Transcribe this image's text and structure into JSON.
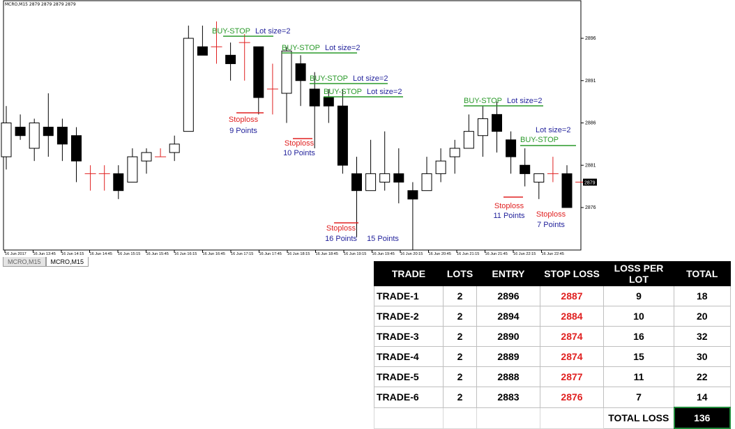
{
  "window": {
    "title": "MCRO,M15  2879 2879 2879 2879"
  },
  "tabs": [
    {
      "label": "MCRO,M15"
    },
    {
      "label": "MCRO,M15"
    }
  ],
  "chart_data": {
    "type": "candlestick",
    "y_ticks": [
      "2896",
      "2891",
      "2886",
      "2881",
      "2876"
    ],
    "current_price": "2879",
    "x_ticks": [
      "16 Jun 2017",
      "16 Jun 13:45",
      "16 Jun 14:15",
      "16 Jun 14:45",
      "16 Jun 15:15",
      "16 Jun 15:45",
      "16 Jun 16:15",
      "16 Jun 16:45",
      "16 Jun 17:15",
      "16 Jun 17:45",
      "16 Jun 18:15",
      "16 Jun 18:45",
      "16 Jun 19:15",
      "16 Jun 19:45",
      "16 Jun 20:15",
      "16 Jun 20:45",
      "16 Jun 21:15",
      "16 Jun 21:45",
      "16 Jun 22:15",
      "16 Jun 22:45"
    ],
    "candles": [
      {
        "o": 2882,
        "h": 2888,
        "l": 2880.5,
        "c": 2886
      },
      {
        "o": 2885.5,
        "h": 2887,
        "l": 2884,
        "c": 2884.5
      },
      {
        "o": 2883,
        "h": 2886.5,
        "l": 2881.5,
        "c": 2886
      },
      {
        "o": 2885.5,
        "h": 2889.5,
        "l": 2882,
        "c": 2884.5
      },
      {
        "o": 2885.5,
        "h": 2886.5,
        "l": 2881.5,
        "c": 2883.5
      },
      {
        "o": 2884.5,
        "h": 2885.5,
        "l": 2879,
        "c": 2881.5
      },
      {
        "o": 2880,
        "h": 2881,
        "l": 2878,
        "c": 2880
      },
      {
        "o": 2880,
        "h": 2881,
        "l": 2878,
        "c": 2880
      },
      {
        "o": 2880,
        "h": 2881,
        "l": 2877,
        "c": 2878
      },
      {
        "o": 2879,
        "h": 2883,
        "l": 2879,
        "c": 2882
      },
      {
        "o": 2881.5,
        "h": 2883,
        "l": 2880,
        "c": 2882.5
      },
      {
        "o": 2882,
        "h": 2883,
        "l": 2882,
        "c": 2882
      },
      {
        "o": 2882.5,
        "h": 2884.5,
        "l": 2881.5,
        "c": 2883.5
      },
      {
        "o": 2885,
        "h": 2897.5,
        "l": 2885,
        "c": 2896
      },
      {
        "o": 2895,
        "h": 2897.5,
        "l": 2894,
        "c": 2894
      },
      {
        "o": 2895,
        "h": 2898,
        "l": 2893,
        "c": 2895
      },
      {
        "o": 2894,
        "h": 2895.5,
        "l": 2891,
        "c": 2893
      },
      {
        "o": 2895.5,
        "h": 2896.5,
        "l": 2891,
        "c": 2895.5
      },
      {
        "o": 2895,
        "h": 2895,
        "l": 2887,
        "c": 2889
      },
      {
        "o": 2890,
        "h": 2893,
        "l": 2887,
        "c": 2890
      },
      {
        "o": 2889.5,
        "h": 2895,
        "l": 2886,
        "c": 2894.5
      },
      {
        "o": 2893,
        "h": 2894,
        "l": 2888,
        "c": 2891
      },
      {
        "o": 2890,
        "h": 2892,
        "l": 2883,
        "c": 2888
      },
      {
        "o": 2889,
        "h": 2890,
        "l": 2886,
        "c": 2888
      },
      {
        "o": 2888,
        "h": 2890,
        "l": 2880,
        "c": 2881
      },
      {
        "o": 2880,
        "h": 2882,
        "l": 2872.5,
        "c": 2878
      },
      {
        "o": 2878,
        "h": 2884,
        "l": 2878,
        "c": 2880
      },
      {
        "o": 2879,
        "h": 2885,
        "l": 2878,
        "c": 2880
      },
      {
        "o": 2880,
        "h": 2883,
        "l": 2876.5,
        "c": 2879
      },
      {
        "o": 2878,
        "h": 2879,
        "l": 2871,
        "c": 2877
      },
      {
        "o": 2878,
        "h": 2882,
        "l": 2878,
        "c": 2880
      },
      {
        "o": 2880,
        "h": 2883,
        "l": 2879,
        "c": 2881.5
      },
      {
        "o": 2882,
        "h": 2884,
        "l": 2880,
        "c": 2883
      },
      {
        "o": 2883,
        "h": 2887,
        "l": 2883,
        "c": 2885
      },
      {
        "o": 2884.5,
        "h": 2888,
        "l": 2882,
        "c": 2886.5
      },
      {
        "o": 2887,
        "h": 2888.5,
        "l": 2882.5,
        "c": 2885
      },
      {
        "o": 2884,
        "h": 2885,
        "l": 2880,
        "c": 2882
      },
      {
        "o": 2881,
        "h": 2883,
        "l": 2878.5,
        "c": 2880
      },
      {
        "o": 2879,
        "h": 2880,
        "l": 2877,
        "c": 2880
      },
      {
        "o": 2880,
        "h": 2882,
        "l": 2879,
        "c": 2880
      },
      {
        "o": 2880,
        "h": 2881,
        "l": 2876,
        "c": 2876
      },
      {
        "o": 2879,
        "h": 2879,
        "l": 2879,
        "c": 2879
      }
    ],
    "annotations": {
      "buy_stop": [
        {
          "label": "BUY-STOP",
          "lot": "Lot size=2"
        },
        {
          "label": "BUY-STOP",
          "lot": "Lot size=2"
        },
        {
          "label": "BUY-STOP",
          "lot": "Lot size=2"
        },
        {
          "label": "BUY-STOP",
          "lot": "Lot size=2"
        },
        {
          "label": "BUY-STOP",
          "lot": "Lot size=2"
        },
        {
          "label": "BUY-STOP",
          "lot": "Lot size=2"
        }
      ],
      "stoploss": [
        {
          "label": "Stoploss",
          "points": "9 Points"
        },
        {
          "label": "Stoploss",
          "points": "10 Points"
        },
        {
          "label": "Stoploss",
          "points": "16 Points"
        },
        {
          "label": "",
          "points": "15 Points"
        },
        {
          "label": "Stoploss",
          "points": "11 Points"
        },
        {
          "label": "Stoploss",
          "points": "7 Points"
        }
      ]
    },
    "colors": {
      "buy_stop": "#2a9a2a",
      "lot": "#1f1f9a",
      "stoploss": "#e02020",
      "points": "#1f1f9a",
      "neutral": "#e02020"
    }
  },
  "table": {
    "headers": [
      "TRADE",
      "LOTS",
      "ENTRY",
      "STOP LOSS",
      "LOSS PER LOT",
      "TOTAL"
    ],
    "rows": [
      [
        "TRADE-1",
        "2",
        "2896",
        "2887",
        "9",
        "18"
      ],
      [
        "TRADE-2",
        "2",
        "2894",
        "2884",
        "10",
        "20"
      ],
      [
        "TRADE-3",
        "2",
        "2890",
        "2874",
        "16",
        "32"
      ],
      [
        "TRADE-4",
        "2",
        "2889",
        "2874",
        "15",
        "30"
      ],
      [
        "TRADE-5",
        "2",
        "2888",
        "2877",
        "11",
        "22"
      ],
      [
        "TRADE-6",
        "2",
        "2883",
        "2876",
        "7",
        "14"
      ]
    ],
    "total_label": "TOTAL LOSS",
    "total_value": "136"
  }
}
